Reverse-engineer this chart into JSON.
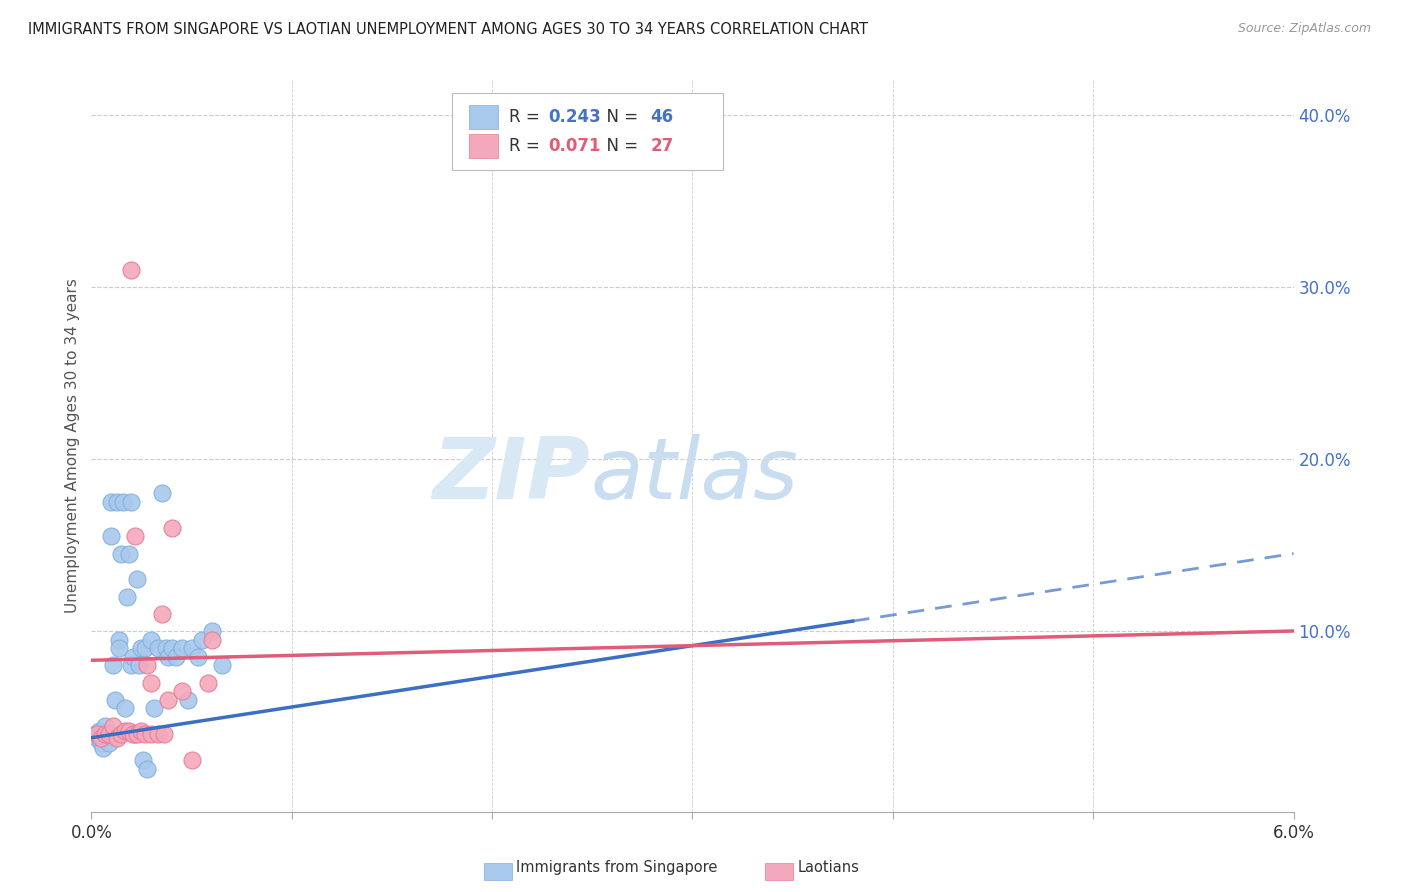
{
  "title": "IMMIGRANTS FROM SINGAPORE VS LAOTIAN UNEMPLOYMENT AMONG AGES 30 TO 34 YEARS CORRELATION CHART",
  "source": "Source: ZipAtlas.com",
  "ylabel": "Unemployment Among Ages 30 to 34 years",
  "right_yticks": [
    0.0,
    0.1,
    0.2,
    0.3,
    0.4
  ],
  "right_yticklabels": [
    "",
    "10.0%",
    "20.0%",
    "30.0%",
    "40.0%"
  ],
  "xlim": [
    0.0,
    0.06
  ],
  "ylim": [
    -0.005,
    0.42
  ],
  "legend_r1_val": "0.243",
  "legend_n1_val": "46",
  "legend_r2_val": "0.071",
  "legend_n2_val": "27",
  "color_blue": "#A8C8EC",
  "color_pink": "#F4A8BC",
  "color_blue_edge": "#7EB0E0",
  "color_pink_edge": "#E87A94",
  "color_blue_text": "#4472C4",
  "color_pink_text": "#E05C78",
  "color_blue_line": "#3A6FC4",
  "color_pink_line": "#E05C78",
  "watermark_zip": "ZIP",
  "watermark_atlas": "atlas",
  "watermark_color": "#D8E8F5",
  "singapore_x": [
    0.0002,
    0.0003,
    0.0004,
    0.0005,
    0.0006,
    0.0006,
    0.0007,
    0.0008,
    0.0009,
    0.001,
    0.001,
    0.0011,
    0.0012,
    0.0013,
    0.0014,
    0.0014,
    0.0015,
    0.0016,
    0.0017,
    0.0018,
    0.0019,
    0.002,
    0.002,
    0.0021,
    0.0022,
    0.0023,
    0.0024,
    0.0025,
    0.0026,
    0.0027,
    0.0028,
    0.003,
    0.0031,
    0.0033,
    0.0035,
    0.0037,
    0.0038,
    0.004,
    0.0042,
    0.0045,
    0.0048,
    0.005,
    0.0053,
    0.0055,
    0.006,
    0.0065
  ],
  "singapore_y": [
    0.04,
    0.038,
    0.042,
    0.035,
    0.038,
    0.032,
    0.045,
    0.04,
    0.035,
    0.175,
    0.155,
    0.08,
    0.06,
    0.175,
    0.095,
    0.09,
    0.145,
    0.175,
    0.055,
    0.12,
    0.145,
    0.08,
    0.175,
    0.085,
    0.04,
    0.13,
    0.08,
    0.09,
    0.025,
    0.09,
    0.02,
    0.095,
    0.055,
    0.09,
    0.18,
    0.09,
    0.085,
    0.09,
    0.085,
    0.09,
    0.06,
    0.09,
    0.085,
    0.095,
    0.1,
    0.08
  ],
  "laotian_x": [
    0.0003,
    0.0005,
    0.0007,
    0.0009,
    0.0011,
    0.0013,
    0.0015,
    0.0017,
    0.0019,
    0.0021,
    0.0023,
    0.0025,
    0.0027,
    0.003,
    0.0033,
    0.0036,
    0.0022,
    0.0028,
    0.0035,
    0.004,
    0.002,
    0.003,
    0.0038,
    0.0045,
    0.005,
    0.0058,
    0.006
  ],
  "laotian_y": [
    0.04,
    0.038,
    0.04,
    0.04,
    0.045,
    0.038,
    0.04,
    0.042,
    0.042,
    0.04,
    0.04,
    0.042,
    0.04,
    0.04,
    0.04,
    0.04,
    0.155,
    0.08,
    0.11,
    0.16,
    0.31,
    0.07,
    0.06,
    0.065,
    0.025,
    0.07,
    0.095
  ],
  "sg_trend_x0": 0.0,
  "sg_trend_x_solid_end": 0.038,
  "sg_trend_x1": 0.06,
  "sg_trend_y0": 0.038,
  "sg_trend_y1": 0.145,
  "la_trend_x0": 0.0,
  "la_trend_x1": 0.06,
  "la_trend_y0": 0.083,
  "la_trend_y1": 0.1
}
